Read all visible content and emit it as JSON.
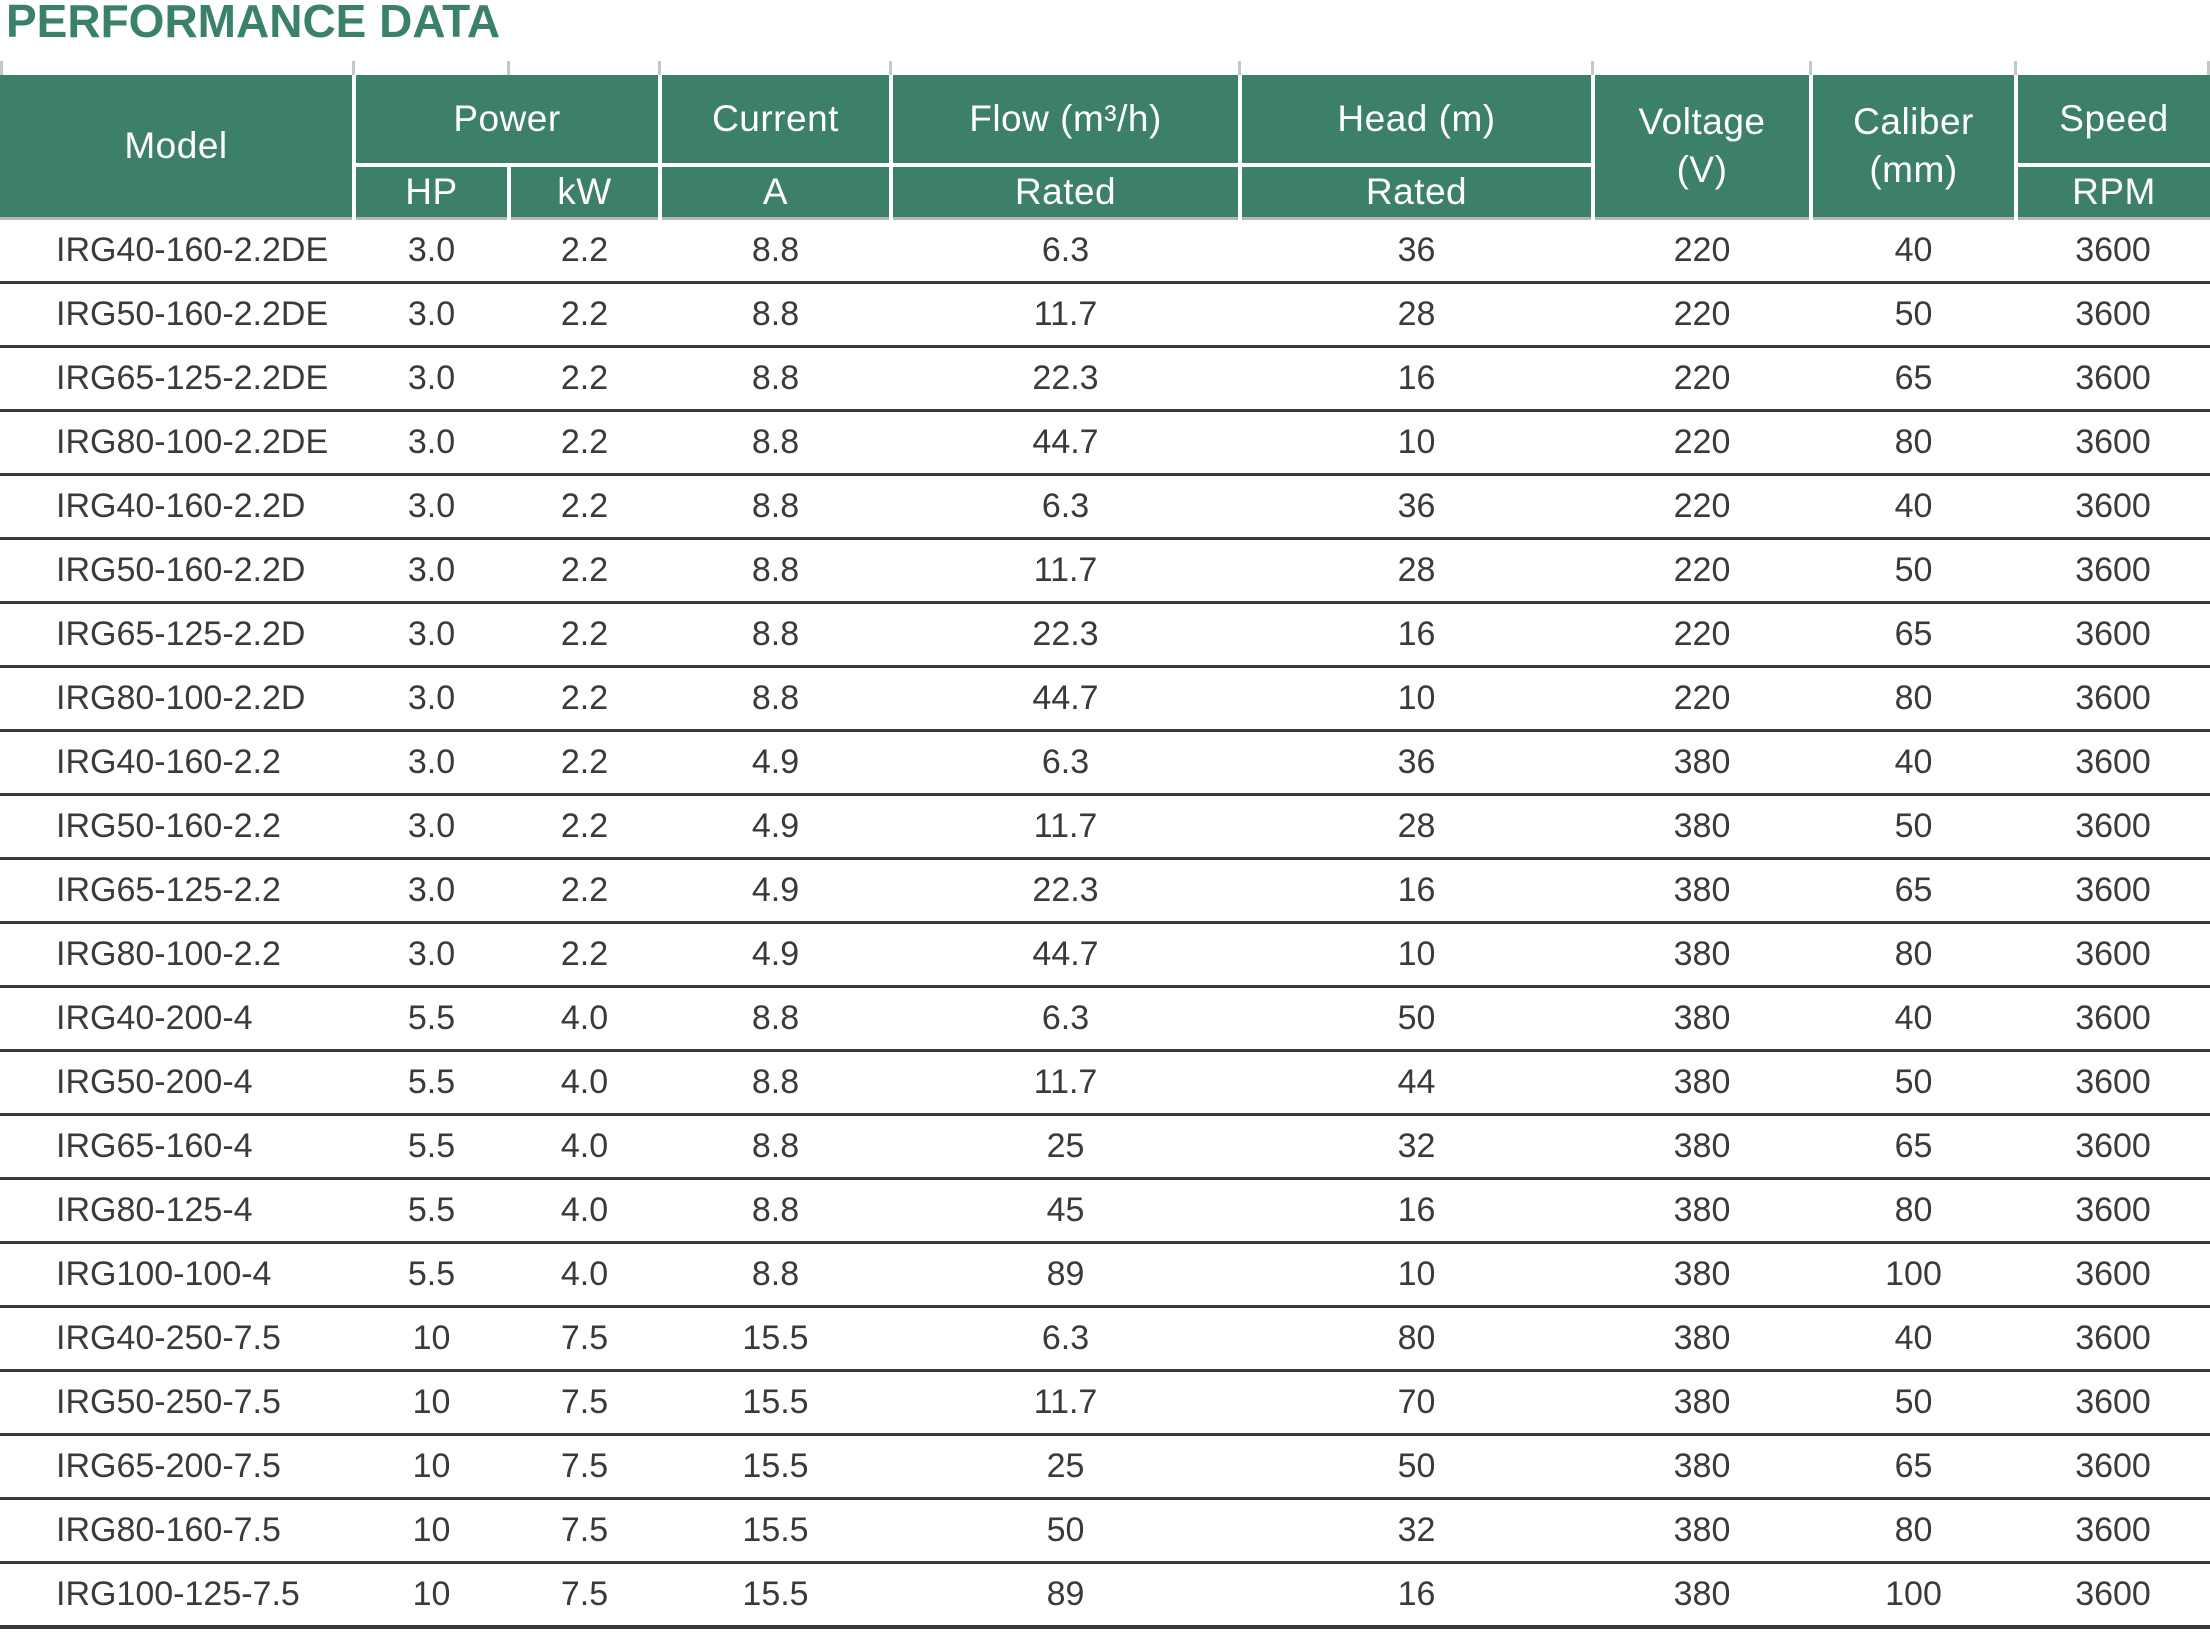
{
  "title": "PERFORMANCE DATA",
  "colors": {
    "header_green": "#3d8068",
    "title_green": "#3a8168",
    "text_dark": "#3a3a3a",
    "row_divider": "#3a3a3a",
    "header_text": "#ffffff"
  },
  "chart_data": {
    "type": "table",
    "title": "PERFORMANCE DATA",
    "header": {
      "model": "Model",
      "power": "Power",
      "hp": "HP",
      "kw": "kW",
      "current": "Current",
      "a": "A",
      "flow": "Flow (m³/h)",
      "flow_sub": "Rated",
      "head": "Head (m)",
      "head_sub": "Rated",
      "voltage": "Voltage\n(V)",
      "caliber": "Caliber\n(mm)",
      "speed": "Speed",
      "speed_sub": "RPM"
    },
    "columns": [
      "Model",
      "Power HP",
      "Power kW",
      "Current A",
      "Flow (m³/h) Rated",
      "Head (m) Rated",
      "Voltage (V)",
      "Caliber (mm)",
      "Speed RPM"
    ],
    "col_keys": [
      "model",
      "power-hp",
      "power-kw",
      "current-a",
      "flow-rated",
      "head-rated",
      "voltage-v",
      "caliber-mm",
      "speed-rpm"
    ],
    "rows": [
      [
        "IRG40-160-2.2DE",
        "3.0",
        "2.2",
        "8.8",
        "6.3",
        "36",
        "220",
        "40",
        "3600"
      ],
      [
        "IRG50-160-2.2DE",
        "3.0",
        "2.2",
        "8.8",
        "11.7",
        "28",
        "220",
        "50",
        "3600"
      ],
      [
        "IRG65-125-2.2DE",
        "3.0",
        "2.2",
        "8.8",
        "22.3",
        "16",
        "220",
        "65",
        "3600"
      ],
      [
        "IRG80-100-2.2DE",
        "3.0",
        "2.2",
        "8.8",
        "44.7",
        "10",
        "220",
        "80",
        "3600"
      ],
      [
        "IRG40-160-2.2D",
        "3.0",
        "2.2",
        "8.8",
        "6.3",
        "36",
        "220",
        "40",
        "3600"
      ],
      [
        "IRG50-160-2.2D",
        "3.0",
        "2.2",
        "8.8",
        "11.7",
        "28",
        "220",
        "50",
        "3600"
      ],
      [
        "IRG65-125-2.2D",
        "3.0",
        "2.2",
        "8.8",
        "22.3",
        "16",
        "220",
        "65",
        "3600"
      ],
      [
        "IRG80-100-2.2D",
        "3.0",
        "2.2",
        "8.8",
        "44.7",
        "10",
        "220",
        "80",
        "3600"
      ],
      [
        "IRG40-160-2.2",
        "3.0",
        "2.2",
        "4.9",
        "6.3",
        "36",
        "380",
        "40",
        "3600"
      ],
      [
        "IRG50-160-2.2",
        "3.0",
        "2.2",
        "4.9",
        "11.7",
        "28",
        "380",
        "50",
        "3600"
      ],
      [
        "IRG65-125-2.2",
        "3.0",
        "2.2",
        "4.9",
        "22.3",
        "16",
        "380",
        "65",
        "3600"
      ],
      [
        "IRG80-100-2.2",
        "3.0",
        "2.2",
        "4.9",
        "44.7",
        "10",
        "380",
        "80",
        "3600"
      ],
      [
        "IRG40-200-4",
        "5.5",
        "4.0",
        "8.8",
        "6.3",
        "50",
        "380",
        "40",
        "3600"
      ],
      [
        "IRG50-200-4",
        "5.5",
        "4.0",
        "8.8",
        "11.7",
        "44",
        "380",
        "50",
        "3600"
      ],
      [
        "IRG65-160-4",
        "5.5",
        "4.0",
        "8.8",
        "25",
        "32",
        "380",
        "65",
        "3600"
      ],
      [
        "IRG80-125-4",
        "5.5",
        "4.0",
        "8.8",
        "45",
        "16",
        "380",
        "80",
        "3600"
      ],
      [
        "IRG100-100-4",
        "5.5",
        "4.0",
        "8.8",
        "89",
        "10",
        "380",
        "100",
        "3600"
      ],
      [
        "IRG40-250-7.5",
        "10",
        "7.5",
        "15.5",
        "6.3",
        "80",
        "380",
        "40",
        "3600"
      ],
      [
        "IRG50-250-7.5",
        "10",
        "7.5",
        "15.5",
        "11.7",
        "70",
        "380",
        "50",
        "3600"
      ],
      [
        "IRG65-200-7.5",
        "10",
        "7.5",
        "15.5",
        "25",
        "50",
        "380",
        "65",
        "3600"
      ],
      [
        "IRG80-160-7.5",
        "10",
        "7.5",
        "15.5",
        "50",
        "32",
        "380",
        "80",
        "3600"
      ],
      [
        "IRG100-125-7.5",
        "10",
        "7.5",
        "15.5",
        "89",
        "16",
        "380",
        "100",
        "3600"
      ]
    ]
  }
}
